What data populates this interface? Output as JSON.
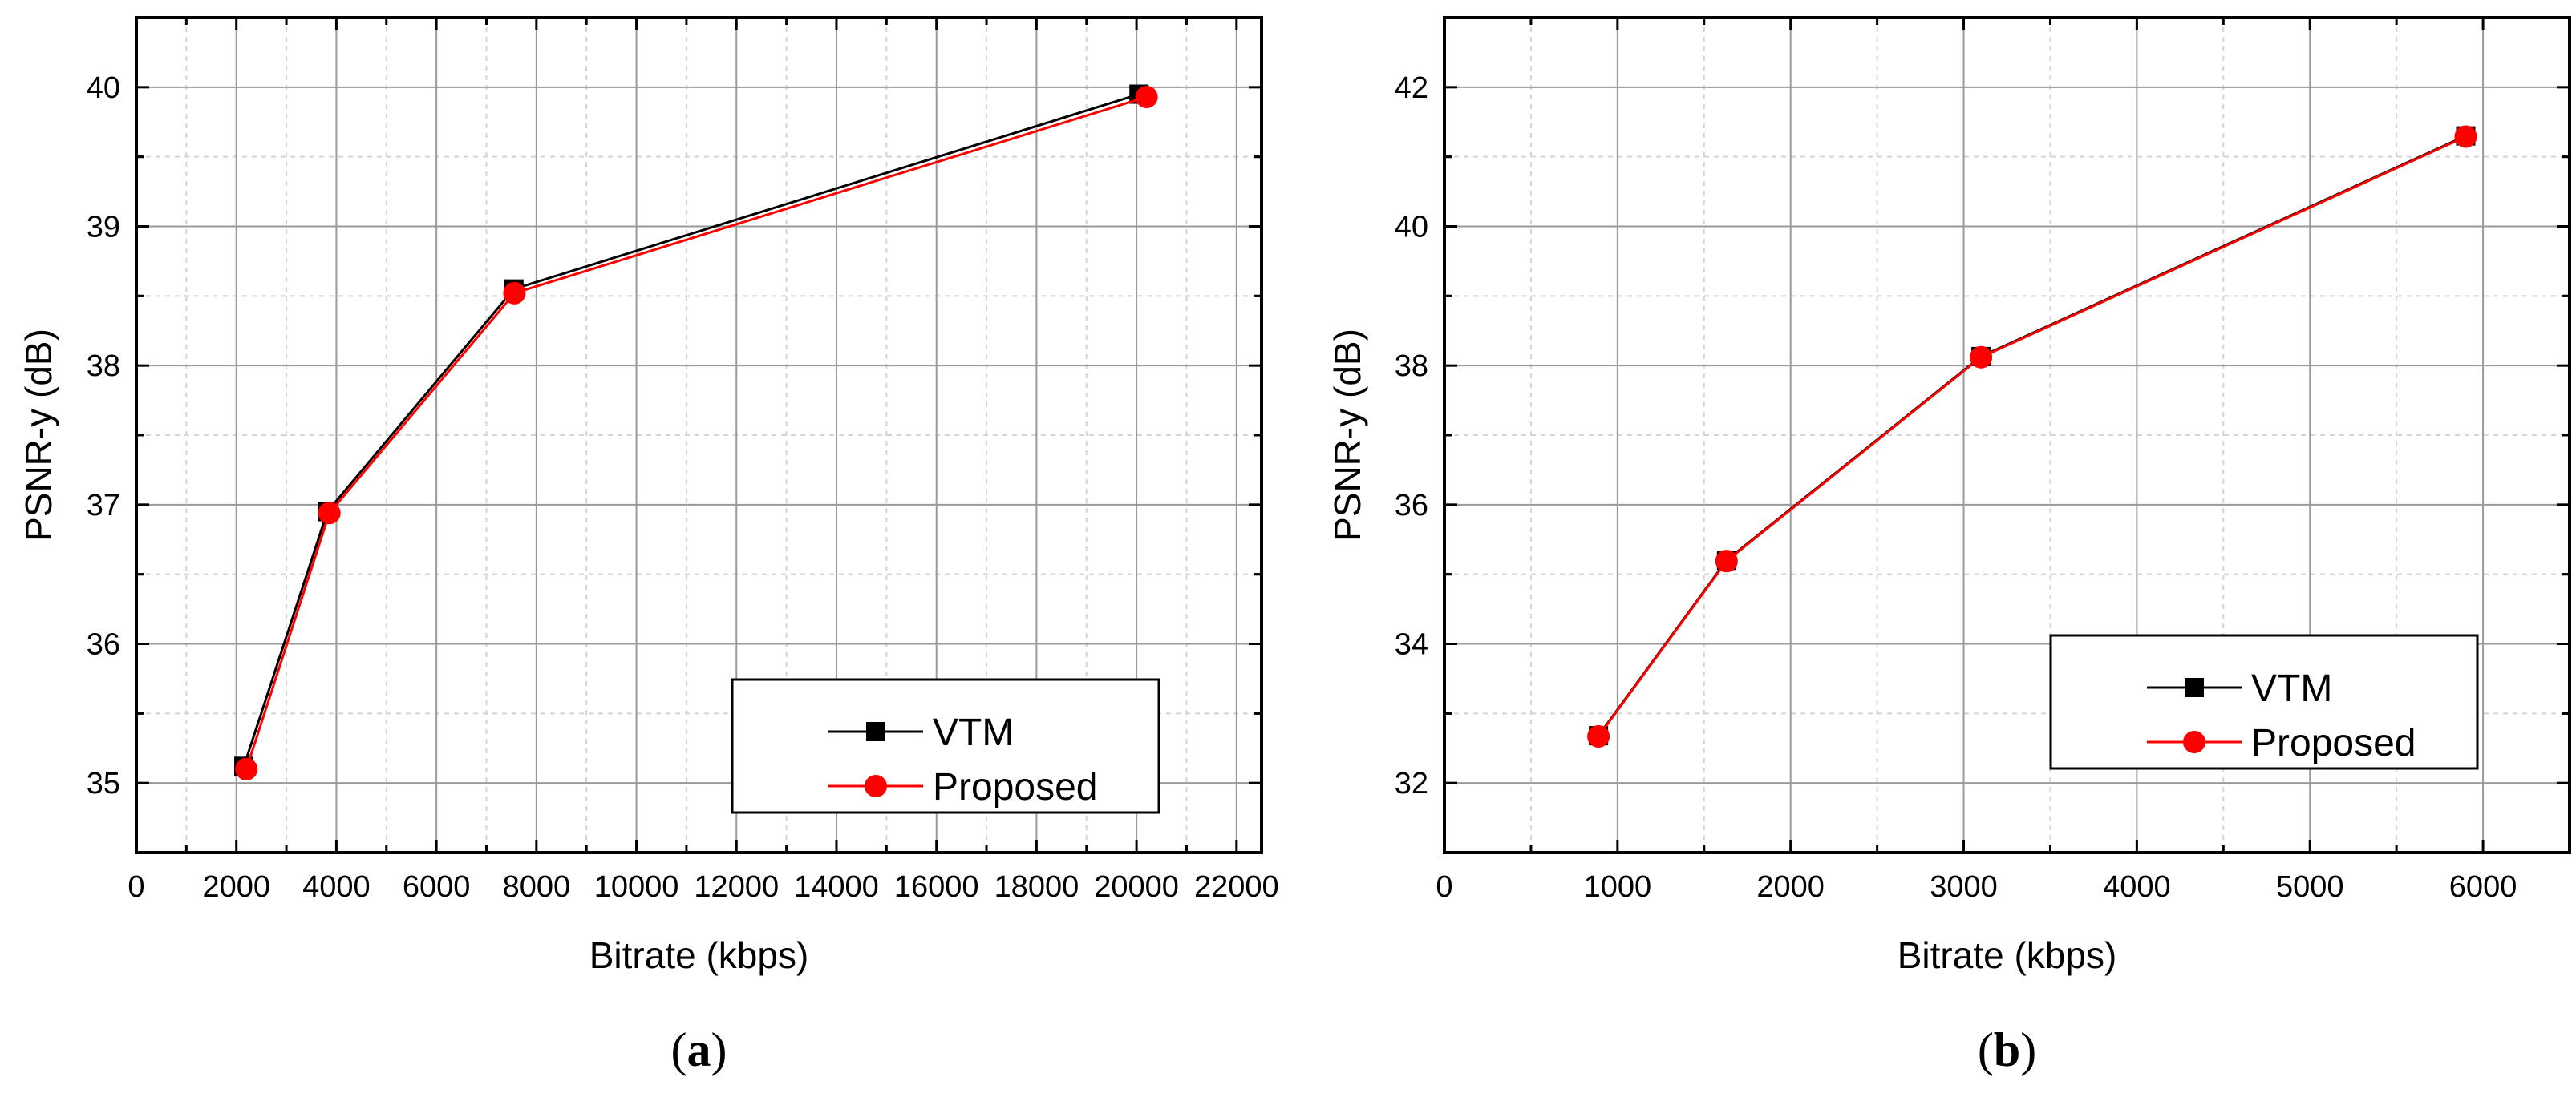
{
  "chart_data": [
    {
      "type": "line",
      "caption_open": "(",
      "caption_letter": "a",
      "caption_close": ")",
      "xlabel": "Bitrate (kbps)",
      "ylabel": "PSNR-y (dB)",
      "xlim": [
        0,
        22500
      ],
      "ylim": [
        34.5,
        40.5
      ],
      "xticks": [
        0,
        2000,
        4000,
        6000,
        8000,
        10000,
        12000,
        14000,
        16000,
        18000,
        20000,
        22000
      ],
      "yticks": [
        35,
        36,
        37,
        38,
        39,
        40
      ],
      "grid": true,
      "legend_position": "lower-right",
      "series": [
        {
          "name": "VTM",
          "color": "#000000",
          "marker": "square",
          "x": [
            2150,
            3820,
            7550,
            20050
          ],
          "y": [
            35.12,
            36.95,
            38.55,
            39.95
          ]
        },
        {
          "name": "Proposed",
          "color": "#ff0000",
          "marker": "circle",
          "x": [
            2200,
            3860,
            7560,
            20200
          ],
          "y": [
            35.1,
            36.94,
            38.52,
            39.93
          ]
        }
      ]
    },
    {
      "type": "line",
      "caption_open": "(",
      "caption_letter": "b",
      "caption_close": ")",
      "xlabel": "Bitrate (kbps)",
      "ylabel": "PSNR-y (dB)",
      "xlim": [
        0,
        6500
      ],
      "ylim": [
        31,
        43
      ],
      "xticks": [
        0,
        1000,
        2000,
        3000,
        4000,
        5000,
        6000
      ],
      "yticks": [
        32,
        34,
        36,
        38,
        40,
        42
      ],
      "grid": true,
      "legend_position": "lower-right",
      "series": [
        {
          "name": "VTM",
          "color": "#000000",
          "marker": "square",
          "x": [
            890,
            1630,
            3100,
            5900
          ],
          "y": [
            32.68,
            35.2,
            38.13,
            41.3
          ]
        },
        {
          "name": "Proposed",
          "color": "#ff0000",
          "marker": "circle",
          "x": [
            890,
            1630,
            3100,
            5900
          ],
          "y": [
            32.67,
            35.19,
            38.12,
            41.29
          ]
        }
      ]
    }
  ]
}
